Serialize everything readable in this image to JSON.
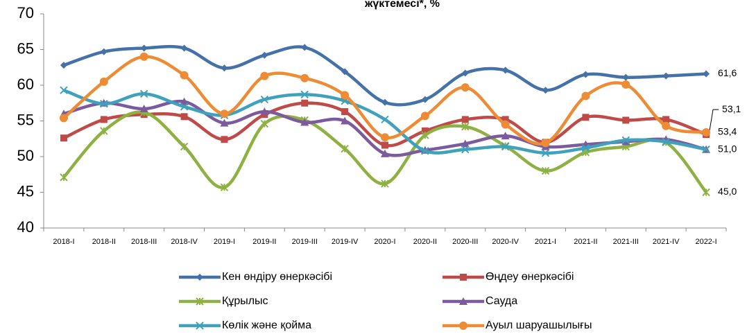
{
  "chart_data": {
    "type": "line",
    "title": "жүктемесі*, %",
    "categories": [
      "2018-I",
      "2018-II",
      "2018-III",
      "2018-IV",
      "2019-I",
      "2019-II",
      "2019-III",
      "2019-IV",
      "2020-I",
      "2020-II",
      "2020-III",
      "2020-IV",
      "2021-I",
      "2021-II",
      "2021-III",
      "2021-IV",
      "2022-I"
    ],
    "ylim": [
      40,
      70
    ],
    "yticks": [
      40,
      45,
      50,
      55,
      60,
      65,
      70
    ],
    "grid": false,
    "legend": "bottom",
    "series": [
      {
        "name": "Кен өндіру өнеркәсібі",
        "color": "#4472a8",
        "marker": "diamond",
        "values": [
          62.8,
          64.7,
          65.2,
          65.2,
          62.4,
          64.2,
          65.3,
          61.9,
          57.6,
          58.0,
          61.7,
          62.1,
          59.3,
          61.5,
          61.1,
          61.3,
          61.6
        ],
        "value_labels": [
          null,
          null,
          null,
          null,
          null,
          null,
          null,
          null,
          null,
          null,
          null,
          null,
          null,
          null,
          null,
          null,
          "61,6"
        ]
      },
      {
        "name": "Өңдеу өнеркәсібі",
        "color": "#be4b48",
        "marker": "square",
        "values": [
          52.6,
          55.2,
          55.9,
          55.6,
          52.4,
          55.9,
          57.5,
          56.3,
          51.6,
          53.6,
          55.2,
          55.2,
          52.0,
          55.5,
          55.1,
          55.2,
          53.1
        ],
        "value_labels": [
          null,
          null,
          null,
          null,
          null,
          null,
          null,
          null,
          null,
          null,
          null,
          null,
          null,
          null,
          null,
          null,
          "53,1"
        ]
      },
      {
        "name": "Құрылыс",
        "color": "#8db142",
        "marker": "star",
        "values": [
          47.1,
          53.6,
          56.2,
          51.4,
          45.7,
          54.6,
          55.1,
          51.1,
          46.2,
          53.0,
          54.2,
          51.5,
          48.0,
          50.6,
          51.4,
          52.0,
          45.0
        ],
        "value_labels": [
          null,
          null,
          null,
          null,
          null,
          null,
          null,
          null,
          null,
          null,
          null,
          null,
          null,
          null,
          null,
          null,
          "45,0"
        ]
      },
      {
        "name": "Сауда",
        "color": "#7b5a9d",
        "marker": "triangle",
        "values": [
          56.0,
          57.5,
          56.7,
          57.7,
          54.7,
          56.3,
          54.8,
          55.0,
          50.4,
          50.9,
          51.8,
          52.9,
          51.4,
          51.7,
          52.1,
          52.4,
          51.0
        ]
      },
      {
        "name": "Көлік және қойма",
        "color": "#3fa1bb",
        "marker": "x",
        "values": [
          59.3,
          57.4,
          58.8,
          57.0,
          55.8,
          58.0,
          58.7,
          57.8,
          55.2,
          50.8,
          51.0,
          51.4,
          50.5,
          51.2,
          52.3,
          52.1,
          51.0
        ],
        "value_labels": [
          null,
          null,
          null,
          null,
          null,
          null,
          null,
          null,
          null,
          null,
          null,
          null,
          null,
          null,
          null,
          null,
          "51,0"
        ]
      },
      {
        "name": "Ауыл шаруашылығы",
        "color": "#ee8c35",
        "marker": "circle",
        "values": [
          55.4,
          60.5,
          64.0,
          61.4,
          56.0,
          61.3,
          61.0,
          58.6,
          52.7,
          55.7,
          59.7,
          54.5,
          51.9,
          58.5,
          60.1,
          54.3,
          53.4
        ],
        "value_labels": [
          null,
          null,
          null,
          null,
          null,
          null,
          null,
          null,
          null,
          null,
          null,
          null,
          null,
          null,
          null,
          null,
          "53,4"
        ]
      }
    ]
  }
}
